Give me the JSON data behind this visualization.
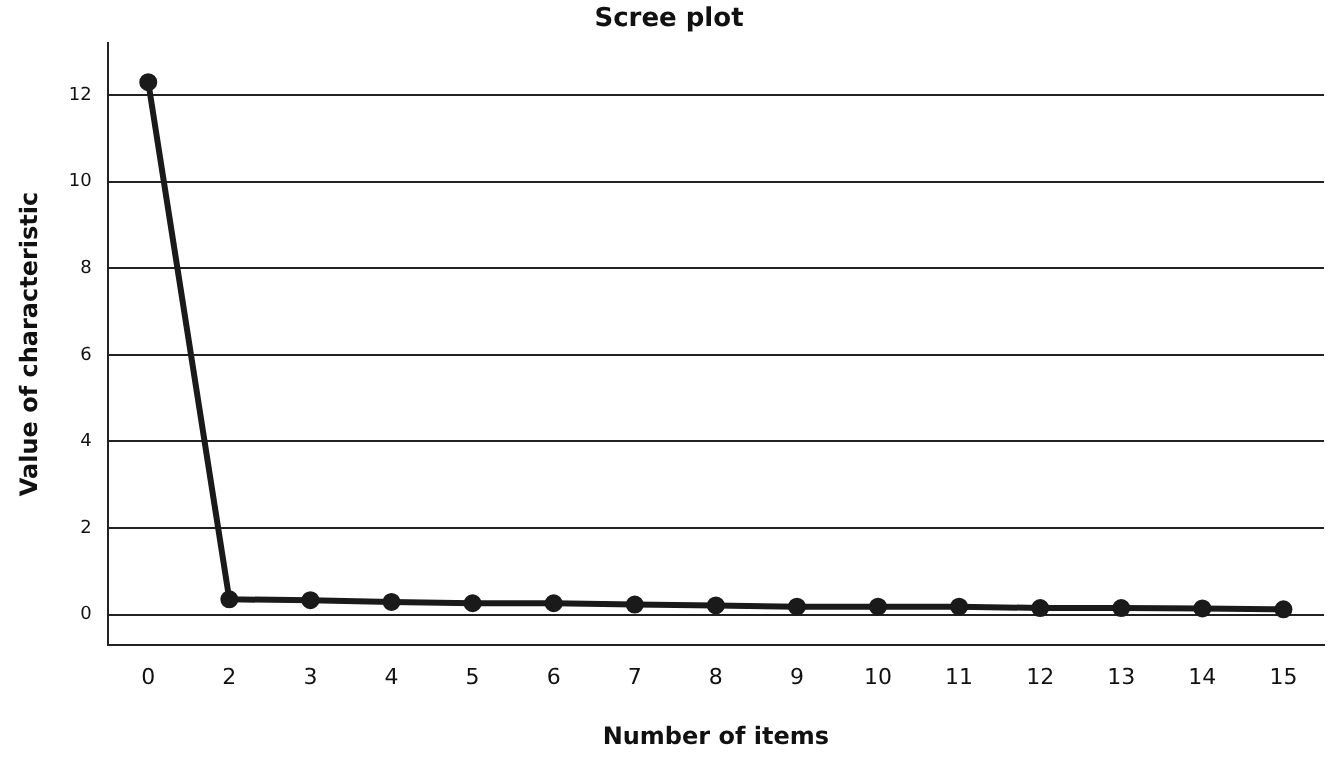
{
  "chart_data": {
    "type": "line",
    "title": "Scree plot",
    "xlabel": "Number of items",
    "ylabel": "Value of characteristic",
    "categories": [
      "0",
      "2",
      "3",
      "4",
      "5",
      "6",
      "7",
      "8",
      "9",
      "10",
      "11",
      "12",
      "13",
      "14",
      "15"
    ],
    "series": [
      {
        "color": "#1a1a1a",
        "values": [
          12.3,
          0.35,
          0.33,
          0.29,
          0.26,
          0.26,
          0.23,
          0.21,
          0.18,
          0.18,
          0.18,
          0.15,
          0.15,
          0.14,
          0.12
        ]
      }
    ],
    "ylim": [
      -0.7,
      13.2
    ],
    "yticks": [
      0,
      2,
      4,
      6,
      8,
      10,
      12
    ],
    "grid": "y",
    "marker": "circle",
    "line_style": "solid",
    "legend": false
  }
}
